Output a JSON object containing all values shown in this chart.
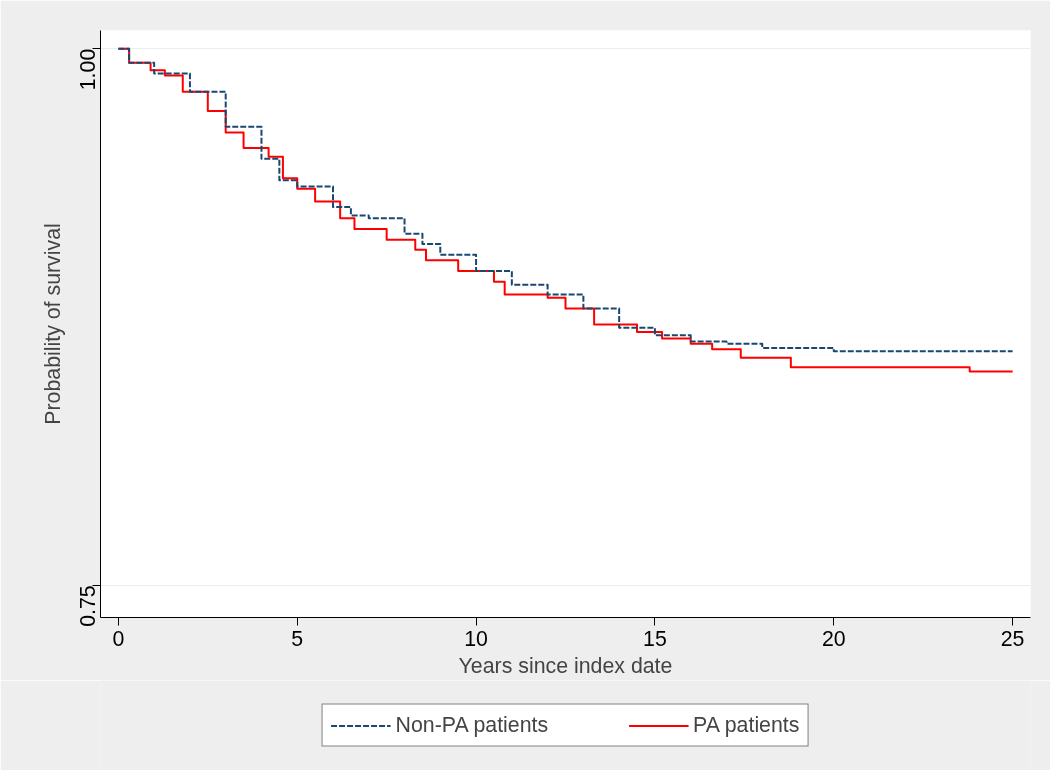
{
  "chart_data": {
    "type": "step",
    "xlabel": "Years since index date",
    "ylabel": "Probability of survival",
    "xlim": [
      -0.5,
      25.5
    ],
    "ylim": [
      0.735,
      1.0085
    ],
    "xticks": [
      0,
      5,
      10,
      15,
      20,
      25
    ],
    "yticks": [
      {
        "value": 0.75,
        "label": "0.75"
      },
      {
        "value": 1.0,
        "label": "1.00"
      }
    ],
    "grid": "y",
    "legend": "bottom",
    "series": [
      {
        "name": "Non-PA patients",
        "color": "#1a476f",
        "line_style": "dashed",
        "x": [
          0,
          0.3,
          1,
          2,
          3,
          4,
          4.5,
          5,
          6,
          6.5,
          7,
          8,
          8.5,
          9,
          10,
          11,
          12,
          13,
          14,
          15,
          16,
          17,
          18,
          20,
          25
        ],
        "values": [
          1.0,
          0.9935,
          0.9885,
          0.98,
          0.9636,
          0.9487,
          0.9387,
          0.9358,
          0.9263,
          0.9223,
          0.921,
          0.9138,
          0.909,
          0.904,
          0.8964,
          0.89,
          0.8855,
          0.879,
          0.87,
          0.8665,
          0.8636,
          0.8626,
          0.8606,
          0.859,
          0.859
        ]
      },
      {
        "name": "PA patients",
        "color": "#ff0000",
        "line_style": "solid",
        "x": [
          0,
          0.3,
          0.9,
          1.3,
          1.8,
          2.5,
          3,
          3.5,
          4.2,
          4.6,
          5,
          5.5,
          6.2,
          6.6,
          7.5,
          8.3,
          8.6,
          9.5,
          10.5,
          10.8,
          12,
          12.5,
          13.3,
          14.5,
          15.2,
          16,
          16.6,
          17.4,
          18.8,
          23.8,
          25
        ],
        "values": [
          1.0,
          0.9935,
          0.99,
          0.9875,
          0.98,
          0.971,
          0.961,
          0.9537,
          0.9497,
          0.9397,
          0.9348,
          0.9288,
          0.921,
          0.916,
          0.911,
          0.9064,
          0.9014,
          0.8964,
          0.8914,
          0.8855,
          0.884,
          0.879,
          0.8715,
          0.868,
          0.865,
          0.8626,
          0.86,
          0.856,
          0.8516,
          0.8496,
          0.8496
        ]
      }
    ]
  }
}
